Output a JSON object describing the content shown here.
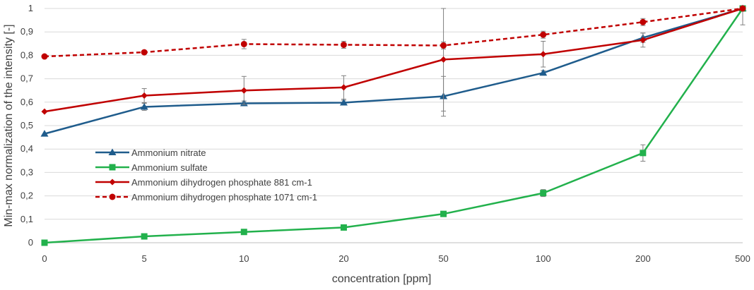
{
  "chart_data": {
    "type": "line",
    "xlabel": "concentration [ppm]",
    "ylabel": "Min-max normalization of the intensity [-]",
    "categories": [
      "0",
      "5",
      "10",
      "20",
      "50",
      "100",
      "200",
      "500"
    ],
    "ylim": [
      0,
      1
    ],
    "yticks": [
      "0",
      "0,1",
      "0,2",
      "0,3",
      "0,4",
      "0,5",
      "0,6",
      "0,7",
      "0,8",
      "0,9",
      "1"
    ],
    "grid": "horizontal",
    "legend_position": "center-left",
    "series": [
      {
        "name": "Ammonium nitrate",
        "color": "#1f5c8c",
        "marker": "triangle",
        "dash": false,
        "values": [
          0.465,
          0.58,
          0.595,
          0.598,
          0.625,
          0.725,
          0.875,
          1.0
        ],
        "errors": [
          0,
          0.015,
          0.01,
          0.01,
          0.085,
          0.01,
          0.02,
          0
        ]
      },
      {
        "name": "Ammonium sulfate",
        "color": "#22b14c",
        "marker": "square",
        "dash": false,
        "values": [
          0.0,
          0.027,
          0.046,
          0.065,
          0.123,
          0.212,
          0.383,
          1.0
        ],
        "errors": [
          0,
          0.005,
          0.005,
          0.005,
          0.005,
          0.015,
          0.035,
          0
        ]
      },
      {
        "name": "Ammonium dihydrogen phosphate 881 cm-1",
        "color": "#c00000",
        "marker": "diamond",
        "dash": false,
        "values": [
          0.56,
          0.628,
          0.65,
          0.663,
          0.782,
          0.805,
          0.865,
          1.0
        ],
        "errors": [
          0,
          0.03,
          0.06,
          0.05,
          0.22,
          0.055,
          0.03,
          0.07
        ]
      },
      {
        "name": "Ammonium dihydrogen phosphate 1071 cm-1",
        "color": "#c00000",
        "marker": "circle",
        "dash": true,
        "values": [
          0.795,
          0.813,
          0.848,
          0.845,
          0.842,
          0.888,
          0.942,
          1.0
        ],
        "errors": [
          0,
          0.005,
          0.02,
          0.015,
          0.015,
          0.015,
          0.015,
          0
        ]
      }
    ]
  }
}
